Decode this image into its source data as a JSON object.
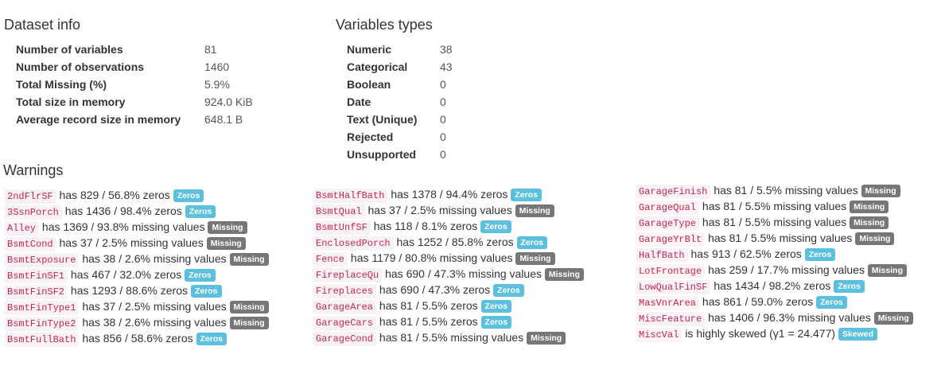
{
  "dataset_info": {
    "title": "Dataset info",
    "rows": [
      {
        "label": "Number of variables",
        "value": "81"
      },
      {
        "label": "Number of observations",
        "value": "1460"
      },
      {
        "label": "Total Missing (%)",
        "value": "5.9%"
      },
      {
        "label": "Total size in memory",
        "value": "924.0 KiB"
      },
      {
        "label": "Average record size in memory",
        "value": "648.1 B"
      }
    ]
  },
  "variable_types": {
    "title": "Variables types",
    "rows": [
      {
        "label": "Numeric",
        "value": "38"
      },
      {
        "label": "Categorical",
        "value": "43"
      },
      {
        "label": "Boolean",
        "value": "0"
      },
      {
        "label": "Date",
        "value": "0"
      },
      {
        "label": "Text (Unique)",
        "value": "0"
      },
      {
        "label": "Rejected",
        "value": "0"
      },
      {
        "label": "Unsupported",
        "value": "0"
      }
    ]
  },
  "warnings": {
    "title": "Warnings",
    "columns": [
      [
        {
          "var": "2ndFlrSF",
          "text": "has 829 / 56.8% zeros",
          "badge": "Zeros"
        },
        {
          "var": "3SsnPorch",
          "text": "has 1436 / 98.4% zeros",
          "badge": "Zeros"
        },
        {
          "var": "Alley",
          "text": "has 1369 / 93.8% missing values",
          "badge": "Missing"
        },
        {
          "var": "BsmtCond",
          "text": "has 37 / 2.5% missing values",
          "badge": "Missing"
        },
        {
          "var": "BsmtExposure",
          "text": "has 38 / 2.6% missing values",
          "badge": "Missing"
        },
        {
          "var": "BsmtFinSF1",
          "text": "has 467 / 32.0% zeros",
          "badge": "Zeros"
        },
        {
          "var": "BsmtFinSF2",
          "text": "has 1293 / 88.6% zeros",
          "badge": "Zeros"
        },
        {
          "var": "BsmtFinType1",
          "text": "has 37 / 2.5% missing values",
          "badge": "Missing"
        },
        {
          "var": "BsmtFinType2",
          "text": "has 38 / 2.6% missing values",
          "badge": "Missing"
        },
        {
          "var": "BsmtFullBath",
          "text": "has 856 / 58.6% zeros",
          "badge": "Zeros"
        }
      ],
      [
        {
          "var": "BsmtHalfBath",
          "text": "has 1378 / 94.4% zeros",
          "badge": "Zeros"
        },
        {
          "var": "BsmtQual",
          "text": "has 37 / 2.5% missing values",
          "badge": "Missing"
        },
        {
          "var": "BsmtUnfSF",
          "text": "has 118 / 8.1% zeros",
          "badge": "Zeros"
        },
        {
          "var": "EnclosedPorch",
          "text": "has 1252 / 85.8% zeros",
          "badge": "Zeros"
        },
        {
          "var": "Fence",
          "text": "has 1179 / 80.8% missing values",
          "badge": "Missing"
        },
        {
          "var": "FireplaceQu",
          "text": "has 690 / 47.3% missing values",
          "badge": "Missing"
        },
        {
          "var": "Fireplaces",
          "text": "has 690 / 47.3% zeros",
          "badge": "Zeros"
        },
        {
          "var": "GarageArea",
          "text": "has 81 / 5.5% zeros",
          "badge": "Zeros"
        },
        {
          "var": "GarageCars",
          "text": "has 81 / 5.5% zeros",
          "badge": "Zeros"
        },
        {
          "var": "GarageCond",
          "text": "has 81 / 5.5% missing values",
          "badge": "Missing"
        }
      ],
      [
        {
          "var": "GarageFinish",
          "text": "has 81 / 5.5% missing values",
          "badge": "Missing"
        },
        {
          "var": "GarageQual",
          "text": "has 81 / 5.5% missing values",
          "badge": "Missing"
        },
        {
          "var": "GarageType",
          "text": "has 81 / 5.5% missing values",
          "badge": "Missing"
        },
        {
          "var": "GarageYrBlt",
          "text": "has 81 / 5.5% missing values",
          "badge": "Missing"
        },
        {
          "var": "HalfBath",
          "text": "has 913 / 62.5% zeros",
          "badge": "Zeros"
        },
        {
          "var": "LotFrontage",
          "text": "has 259 / 17.7% missing values",
          "badge": "Missing"
        },
        {
          "var": "LowQualFinSF",
          "text": "has 1434 / 98.2% zeros",
          "badge": "Zeros"
        },
        {
          "var": "MasVnrArea",
          "text": "has 861 / 59.0% zeros",
          "badge": "Zeros"
        },
        {
          "var": "MiscFeature",
          "text": "has 1406 / 96.3% missing values",
          "badge": "Missing"
        },
        {
          "var": "MiscVal",
          "text": "is highly skewed (γ1 = 24.477)",
          "badge": "Skewed"
        }
      ]
    ]
  }
}
